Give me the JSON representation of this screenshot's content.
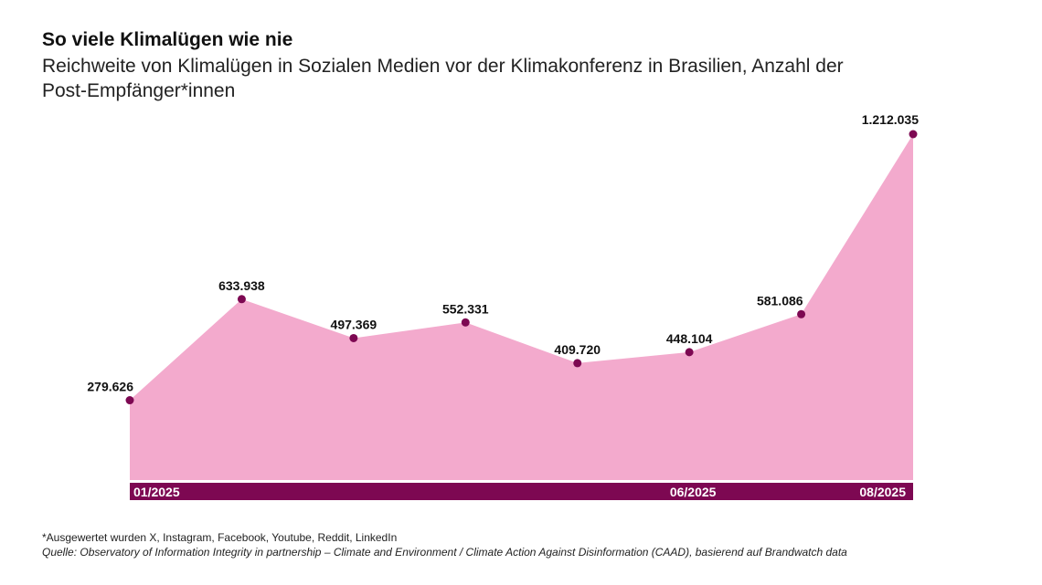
{
  "chart_data": {
    "type": "area",
    "title": "So viele Klimalügen wie nie",
    "subtitle": "Reichweite von Klimalügen in Sozialen Medien vor der Klimakonferenz in Brasilien, Anzahl der Post-Empfänger*innen",
    "x": [
      "01/2025",
      "02/2025",
      "03/2025",
      "04/2025",
      "05/2025",
      "06/2025",
      "07/2025",
      "08/2025"
    ],
    "tick_labels": [
      "01/2025",
      "06/2025",
      "08/2025"
    ],
    "values": [
      279626,
      633938,
      497369,
      552331,
      409720,
      448104,
      581086,
      1212035
    ],
    "value_labels": [
      "279.626",
      "633.938",
      "497.369",
      "552.331",
      "409.720",
      "448.104",
      "581.086",
      "1.212.035"
    ],
    "ylim": [
      0,
      1212035
    ],
    "grid": false,
    "colors": {
      "area": "#f3aacd",
      "marker": "#7d0852",
      "axis_band": "#7d0852"
    }
  },
  "footnote": "*Ausgewertet wurden X, Instagram, Facebook, Youtube, Reddit, LinkedIn",
  "source": "Quelle: Observatory of Information Integrity in partnership – Climate and Environment / Climate Action Against Disinformation (CAAD), basierend auf Brandwatch data"
}
